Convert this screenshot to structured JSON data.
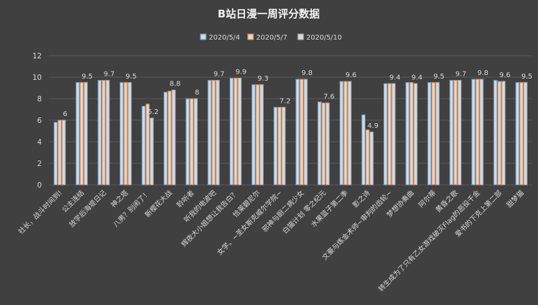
{
  "chart_data": {
    "type": "bar",
    "title": "B站日漫一周评分数据",
    "xlabel": "",
    "ylabel": "",
    "ylim": [
      0,
      12
    ],
    "yticks": [
      0,
      2,
      4,
      6,
      8,
      10,
      12
    ],
    "grid": true,
    "legend_position": "top-center",
    "categories": [
      "社长，战斗时间到!",
      "公主连结",
      "放学后海堤日记",
      "神之塔",
      "八男？别闹了！",
      "新樱花大战",
      "聆听者",
      "听我的电波吧",
      "辉夜大小姐想让我告白？",
      "恰莱碧尼尔",
      "女学。~圣女斯克威尔学院~",
      "邪神与厨二病少女",
      "白猫计划 零之纪元",
      "水果篮子第二季",
      "影之诗",
      "文豪与炼金术师~审判的齿轮~",
      "梦想协奏曲",
      "阿尔蒂",
      "黄昏之歌",
      "转生成为了只有乙女游戏破灭Flag的恶役千金",
      "爱书的下克上第二部",
      "甜梦猫"
    ],
    "series": [
      {
        "name": "2020/5/4",
        "color": "#5b9bd5",
        "values": [
          5.8,
          9.5,
          9.7,
          9.5,
          7.3,
          8.6,
          8.0,
          9.7,
          9.9,
          9.3,
          7.2,
          9.8,
          7.7,
          9.6,
          6.5,
          9.4,
          9.5,
          9.5,
          9.7,
          9.8,
          9.7,
          9.5
        ]
      },
      {
        "name": "2020/5/7",
        "color": "#ed7d31",
        "values": [
          6.0,
          9.5,
          9.7,
          9.5,
          7.5,
          8.7,
          8.0,
          9.7,
          9.9,
          9.3,
          7.2,
          9.8,
          7.6,
          9.6,
          5.1,
          9.4,
          9.5,
          9.5,
          9.7,
          9.8,
          9.6,
          9.5
        ]
      },
      {
        "name": "2020/5/10",
        "color": "#a5a5a5",
        "values": [
          6.0,
          9.5,
          9.7,
          9.5,
          6.2,
          8.8,
          8.0,
          9.7,
          9.9,
          9.3,
          7.2,
          9.8,
          7.6,
          9.6,
          4.9,
          9.4,
          9.4,
          9.5,
          9.7,
          9.8,
          9.6,
          9.5
        ]
      }
    ],
    "data_labels": {
      "series_index": 2,
      "values": [
        "6",
        "9.5",
        "9.7",
        "9.5",
        "6.2",
        "8.8",
        "8",
        "9.7",
        "9.9",
        "9.3",
        "7.2",
        "9.8",
        "7.6",
        "9.6",
        "4.9",
        "9.4",
        "9.4",
        "9.5",
        "9.7",
        "9.8",
        "9.6",
        "9.5"
      ]
    },
    "colors": {
      "background": "#404040",
      "gridline": "#5a5a5a",
      "text": "#d9d9d9",
      "bar_fill": "#d9d9d9"
    }
  }
}
